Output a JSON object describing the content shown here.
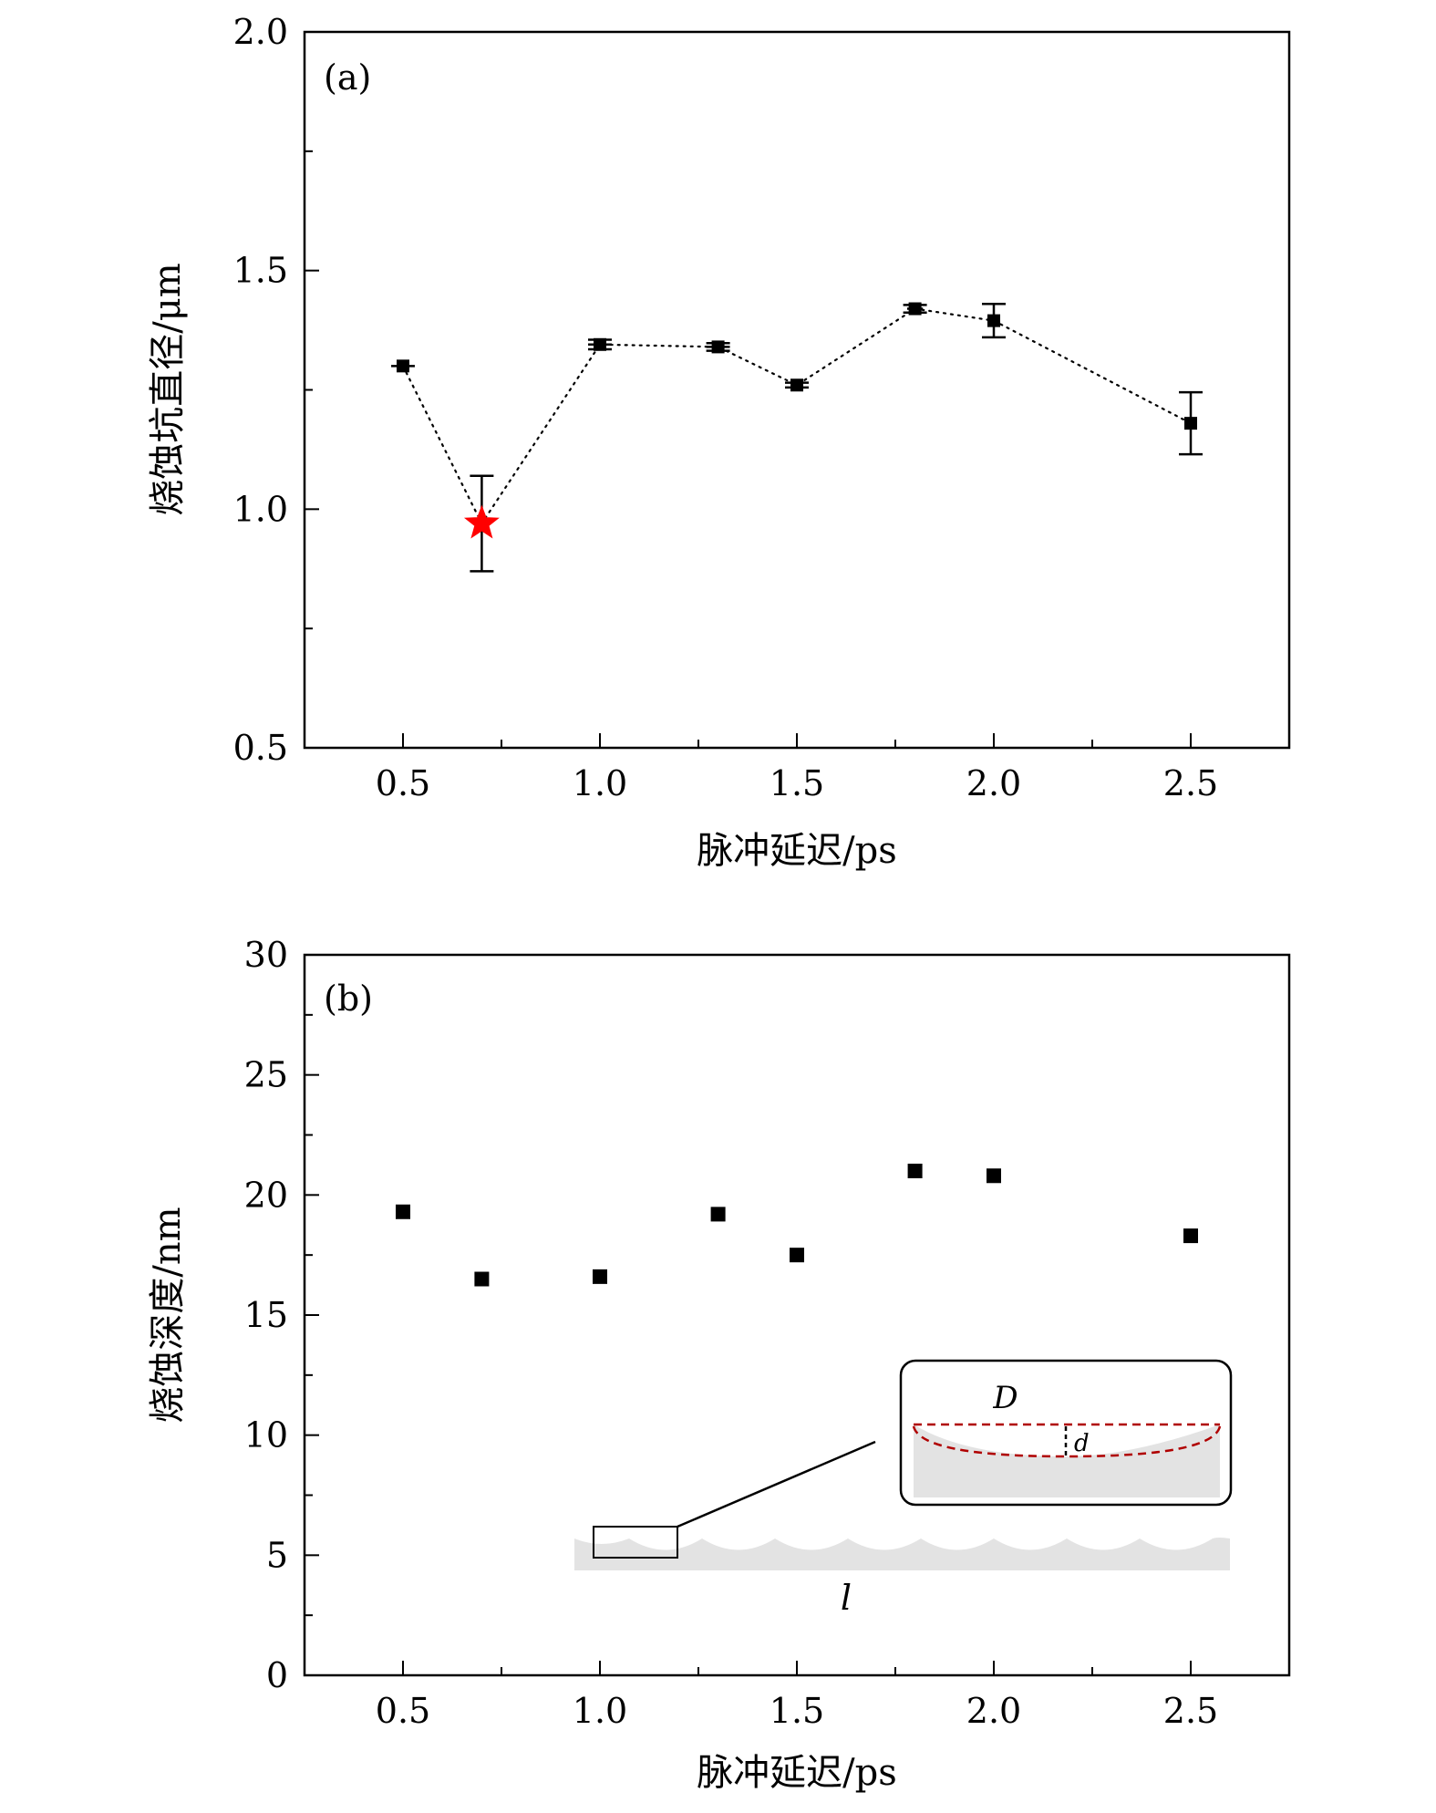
{
  "chart_data": [
    {
      "type": "line",
      "panel_label": "(a)",
      "line_style": "dotted",
      "xlabel": "脉冲延迟/ps",
      "ylabel": "烧蚀坑直径/μm",
      "xlim": [
        0.25,
        2.75
      ],
      "ylim": [
        0.5,
        2.0
      ],
      "xticks": [
        "0.5",
        "1.0",
        "1.5",
        "2.0",
        "2.5"
      ],
      "yticks": [
        "0.5",
        "1.0",
        "1.5",
        "2.0"
      ],
      "x": [
        0.5,
        0.7,
        1.0,
        1.3,
        1.5,
        1.8,
        2.0,
        2.5
      ],
      "y": [
        1.3,
        0.97,
        1.345,
        1.34,
        1.26,
        1.42,
        1.395,
        1.18
      ],
      "yerr": [
        0.0,
        0.1,
        0.01,
        0.008,
        0.005,
        0.008,
        0.035,
        0.065
      ],
      "xerr": [
        0.03,
        0.0,
        0.03,
        0.03,
        0.0,
        0.02,
        0.0,
        0.0
      ],
      "highlight": {
        "x": 0.7,
        "y": 0.97,
        "marker": "star",
        "color": "#ff0000"
      }
    },
    {
      "type": "scatter",
      "panel_label": "(b)",
      "xlabel": "脉冲延迟/ps",
      "ylabel": "烧蚀深度/nm",
      "xlim": [
        0.25,
        2.75
      ],
      "ylim": [
        0,
        30
      ],
      "xticks": [
        "0.5",
        "1.0",
        "1.5",
        "2.0",
        "2.5"
      ],
      "yticks": [
        "0",
        "5",
        "10",
        "15",
        "20",
        "25",
        "30"
      ],
      "x": [
        0.5,
        0.7,
        1.0,
        1.3,
        1.5,
        1.8,
        2.0,
        2.5
      ],
      "y": [
        19.3,
        16.5,
        16.6,
        19.2,
        17.5,
        21.0,
        20.8,
        18.3
      ],
      "inset": {
        "D_label": "D",
        "d_label": "d",
        "l_label": "l",
        "accent_color": "#b00000"
      }
    }
  ]
}
